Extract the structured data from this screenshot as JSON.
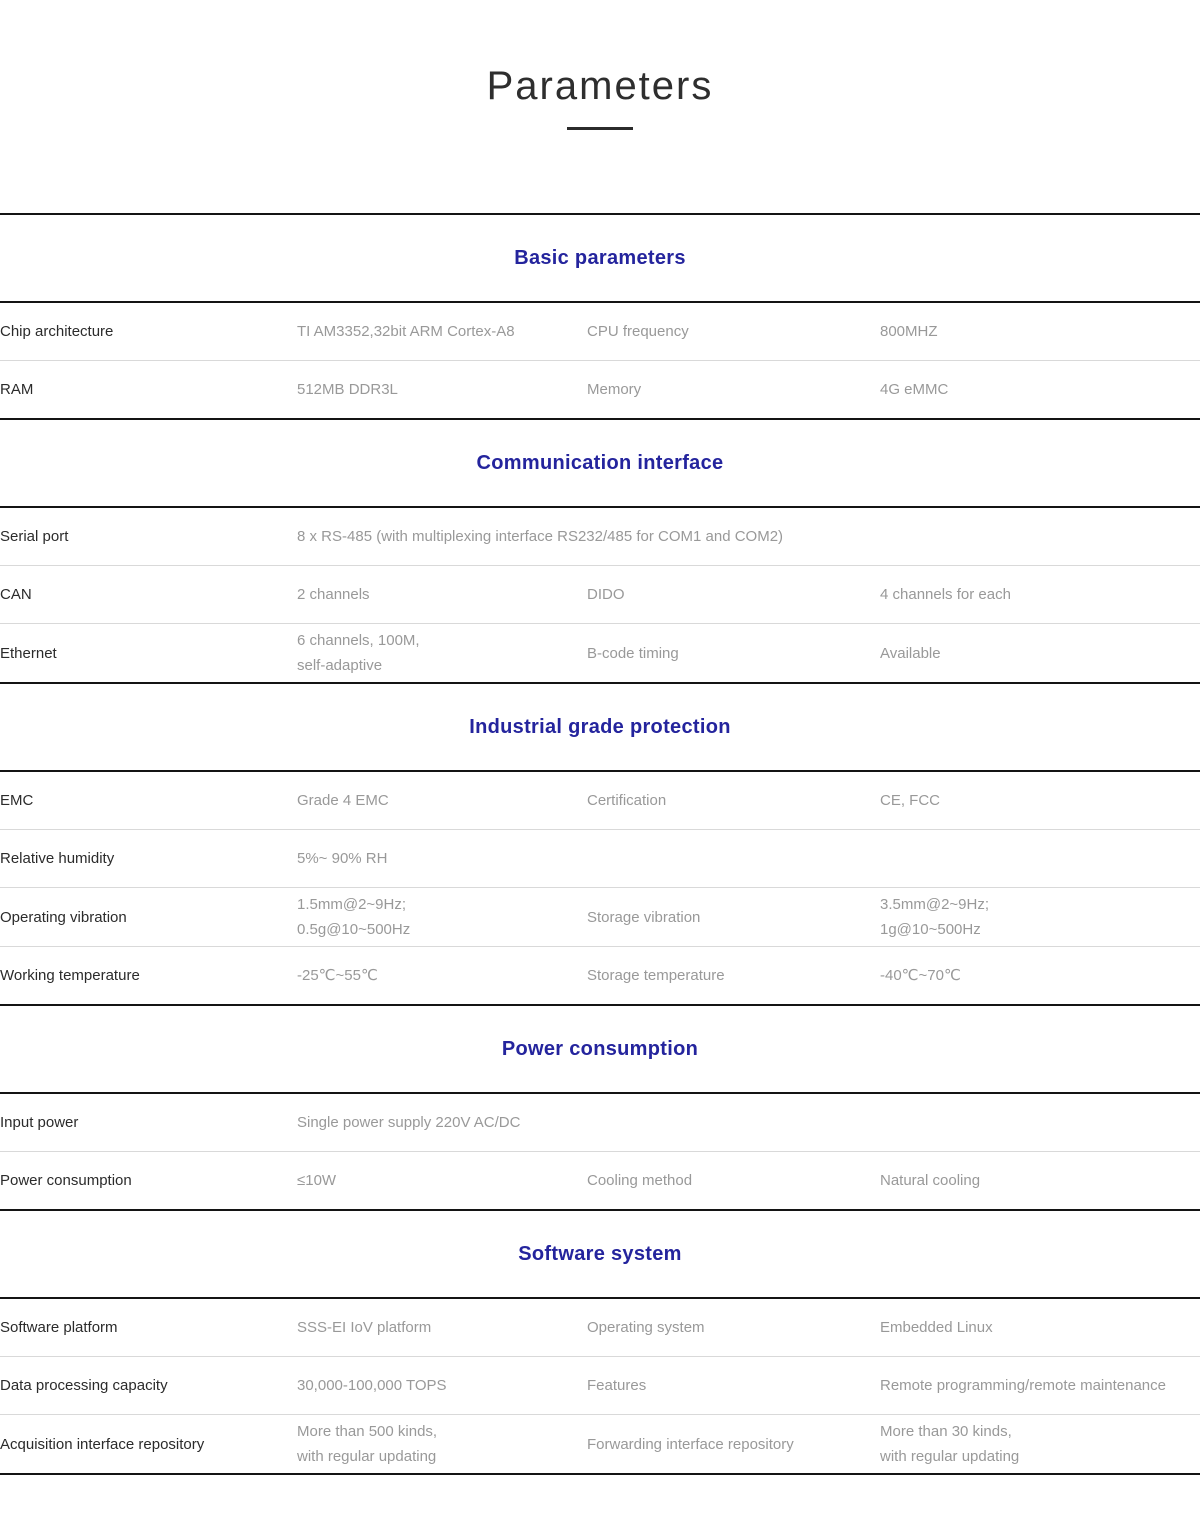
{
  "title": "Parameters",
  "colors": {
    "accent_navy": "#24249d",
    "heavy_rule": "#141414",
    "light_rule": "#d9d9d9",
    "label_text": "#2b2b2b",
    "value_text": "#999999"
  },
  "sections": [
    {
      "title": "Basic parameters",
      "rows": [
        {
          "c1": "Chip architecture",
          "c2": "TI AM3352,32bit ARM Cortex-A8",
          "c3": "CPU frequency",
          "c4": "800MHZ"
        },
        {
          "c1": "RAM",
          "c2": "512MB DDR3L",
          "c3": "Memory",
          "c4": "4G eMMC"
        }
      ]
    },
    {
      "title": "Communication interface",
      "rows": [
        {
          "c1": "Serial port",
          "c2": "8 x RS-485 (with multiplexing interface RS232/485 for COM1 and COM2)"
        },
        {
          "c1": "CAN",
          "c2": "2 channels",
          "c3": "DIDO",
          "c4": "4 channels for each"
        },
        {
          "c1": "Ethernet",
          "c2": "6 channels, 100M,\nself-adaptive",
          "c3": "B-code timing",
          "c4": "Available"
        }
      ]
    },
    {
      "title": "Industrial grade protection",
      "rows": [
        {
          "c1": "EMC",
          "c2": "Grade 4 EMC",
          "c3": "Certification",
          "c4": "CE, FCC"
        },
        {
          "c1": "Relative humidity",
          "c2": "5%~ 90% RH",
          "c3": "",
          "c4": ""
        },
        {
          "c1": "Operating vibration",
          "c2": "1.5mm@2~9Hz;\n0.5g@10~500Hz",
          "c3": "Storage vibration",
          "c4": "3.5mm@2~9Hz;\n1g@10~500Hz"
        },
        {
          "c1": "Working temperature",
          "c2": "-25℃~55℃",
          "c3": "Storage temperature",
          "c4": "-40℃~70℃"
        }
      ]
    },
    {
      "title": "Power consumption",
      "rows": [
        {
          "c1": "Input power",
          "c2": "Single power supply 220V AC/DC"
        },
        {
          "c1": "Power consumption",
          "c2": "≤10W",
          "c3": "Cooling method",
          "c4": "Natural cooling"
        }
      ]
    },
    {
      "title": "Software system",
      "rows": [
        {
          "c1": "Software platform",
          "c2": "SSS-EI IoV platform",
          "c3": "Operating system",
          "c4": "Embedded Linux"
        },
        {
          "c1": "Data processing capacity",
          "c2": "30,000-100,000 TOPS",
          "c3": "Features",
          "c4": "Remote programming/remote maintenance"
        },
        {
          "c1": "Acquisition interface repository",
          "c2": "More than 500 kinds,\nwith regular updating",
          "c3": "Forwarding interface repository",
          "c4": "More than 30 kinds,\nwith regular updating"
        }
      ]
    }
  ]
}
